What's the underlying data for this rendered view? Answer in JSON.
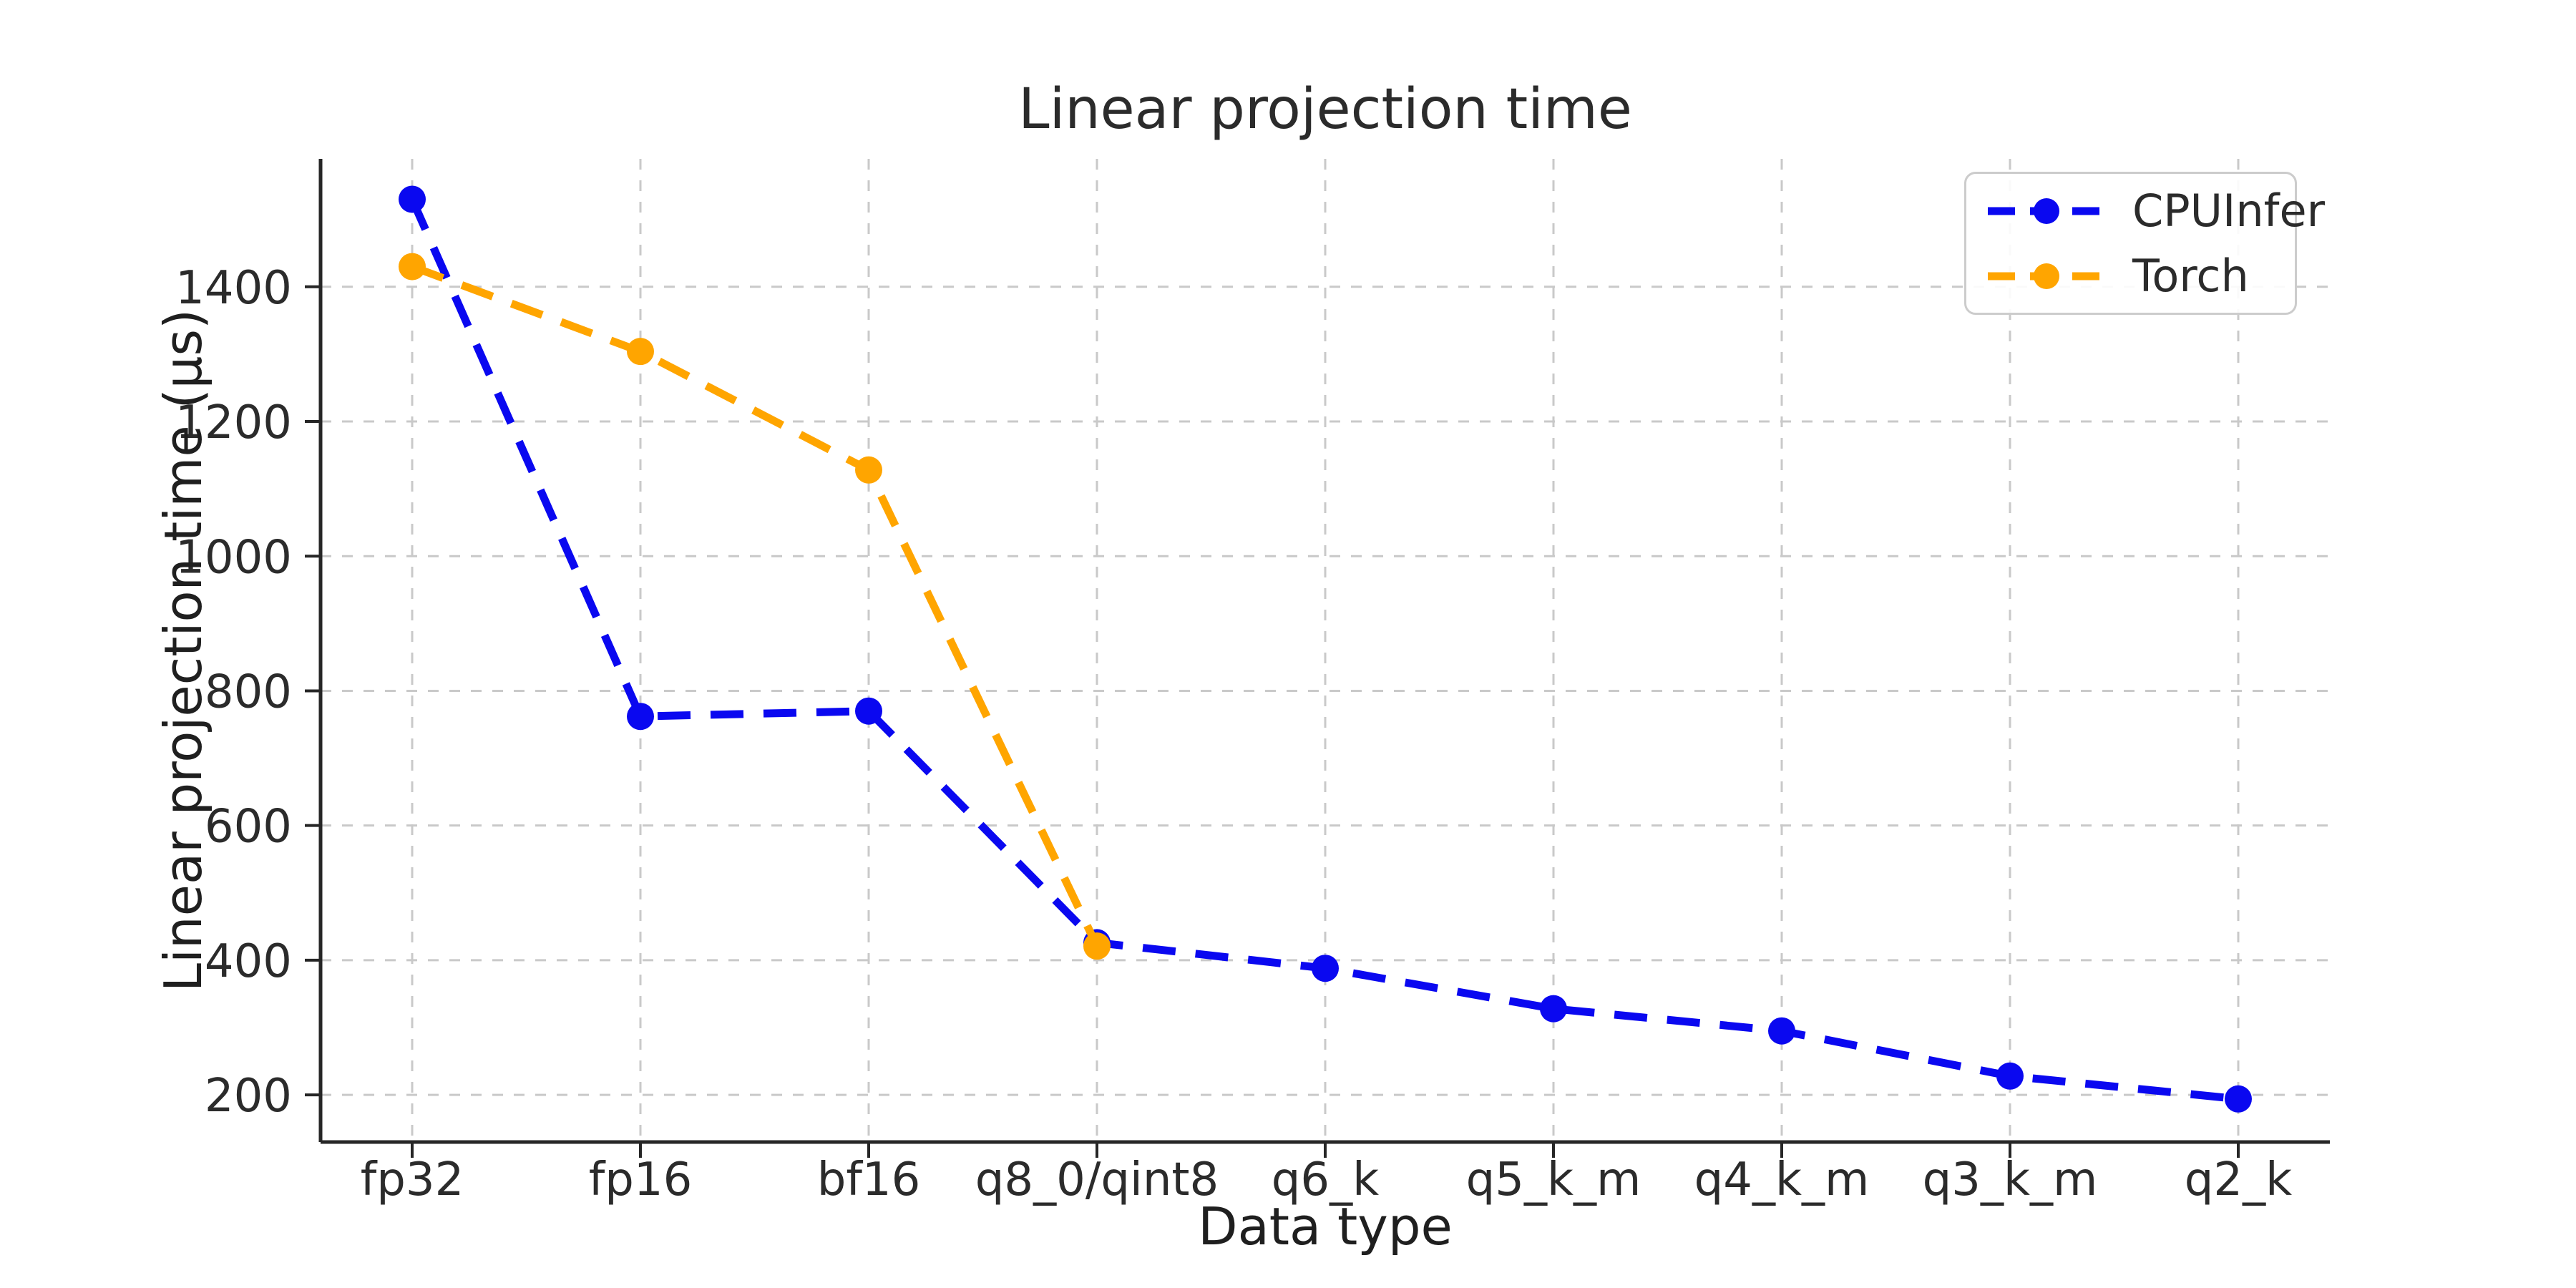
{
  "figure": {
    "title": "Linear projection time",
    "xlabel": "Data type",
    "ylabel": "Linear projection time (μs)"
  },
  "legend": {
    "entries": [
      {
        "label": "CPUInfer",
        "color": "#0a08f0"
      },
      {
        "label": "Torch",
        "color": "#ffa500"
      }
    ]
  },
  "chart_data": {
    "type": "line",
    "title": "Linear projection time",
    "xlabel": "Data type",
    "ylabel": "Linear projection time (μs)",
    "categories": [
      "fp32",
      "fp16",
      "bf16",
      "q8_0/qint8",
      "q6_k",
      "q5_k_m",
      "q4_k_m",
      "q3_k_m",
      "q2_k"
    ],
    "series": [
      {
        "name": "CPUInfer",
        "color": "#0a08f0",
        "values": [
          1530,
          762,
          770,
          426,
          388,
          328,
          295,
          228,
          194
        ]
      },
      {
        "name": "Torch",
        "color": "#ffa500",
        "values": [
          1430,
          1304,
          1128,
          421
        ]
      }
    ],
    "yticks": [
      200,
      400,
      600,
      800,
      1000,
      1200,
      1400
    ],
    "ylim": [
      130,
      1590
    ],
    "grid": true,
    "grid_color": "#c9c9c9",
    "spine_color": "#262626",
    "tick_label_color": "#2b2b2b",
    "line_style": "dashed",
    "marker": "circle",
    "legend_position": "upper right"
  }
}
